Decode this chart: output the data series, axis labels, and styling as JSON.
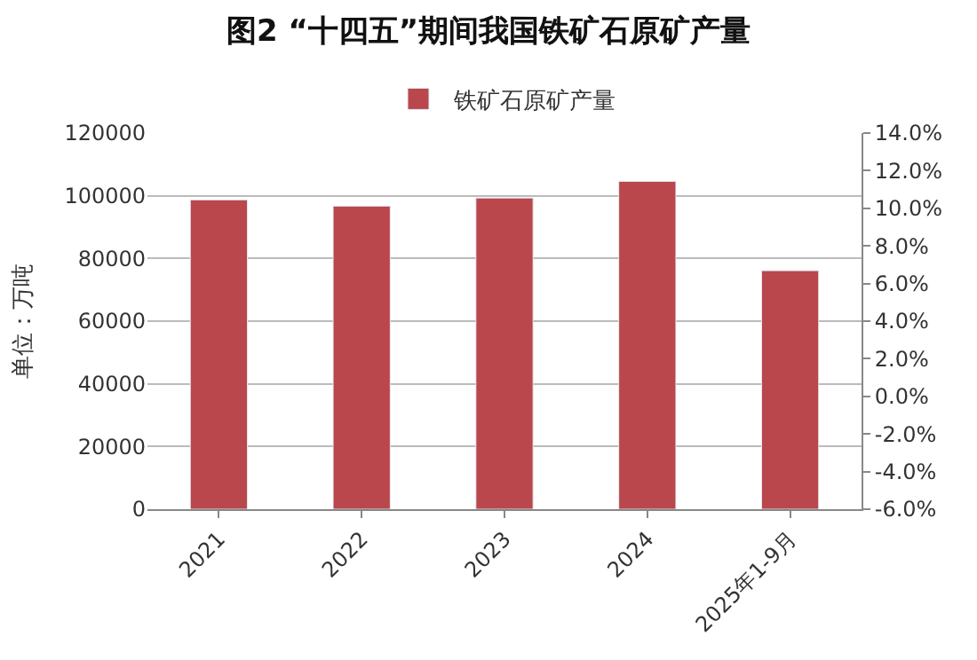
{
  "chart_data": {
    "type": "bar",
    "title": "图2 “十四五”期间我国铁矿石原矿产量",
    "ylabel": "单位：万吨",
    "categories": [
      "2021",
      "2022",
      "2023",
      "2024",
      "2025年1-9月"
    ],
    "series": [
      {
        "name": "铁矿石原矿产量",
        "color": "#b9474b",
        "values": [
          98700,
          96700,
          99300,
          104600,
          76100
        ]
      }
    ],
    "ylim": [
      0,
      120000
    ],
    "yticks": [
      0,
      20000,
      40000,
      60000,
      80000,
      100000,
      120000
    ],
    "y2lim": [
      -6,
      14
    ],
    "y2ticks": [
      {
        "value": -6,
        "label": "-6.0%"
      },
      {
        "value": -4,
        "label": "-4.0%"
      },
      {
        "value": -2,
        "label": "-2.0%"
      },
      {
        "value": 0,
        "label": "0.0%"
      },
      {
        "value": 2,
        "label": "2.0%"
      },
      {
        "value": 4,
        "label": "4.0%"
      },
      {
        "value": 6,
        "label": "6.0%"
      },
      {
        "value": 8,
        "label": "8.0%"
      },
      {
        "value": 10,
        "label": "10.0%"
      },
      {
        "value": 12,
        "label": "12.0%"
      },
      {
        "value": 14,
        "label": "14.0%"
      }
    ],
    "grid": "y",
    "legend": "top"
  }
}
